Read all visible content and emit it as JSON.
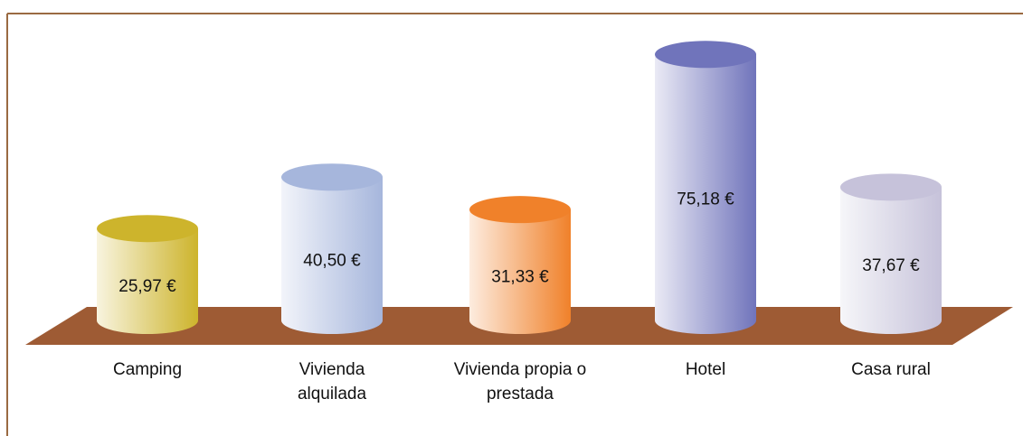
{
  "chart_data": {
    "type": "bar",
    "categories": [
      "Camping",
      "Vivienda alquilada",
      "Vivienda propia o prestada",
      "Hotel",
      "Casa rural"
    ],
    "values": [
      25.97,
      40.5,
      31.33,
      75.18,
      37.67
    ],
    "value_labels": [
      "25,97 €",
      "40,50 €",
      "31,33 €",
      "75,18 €",
      "37,67 €"
    ],
    "colors": [
      "#cdb42c",
      "#a6b6dc",
      "#f0812a",
      "#7074bb",
      "#c6c2da"
    ]
  }
}
